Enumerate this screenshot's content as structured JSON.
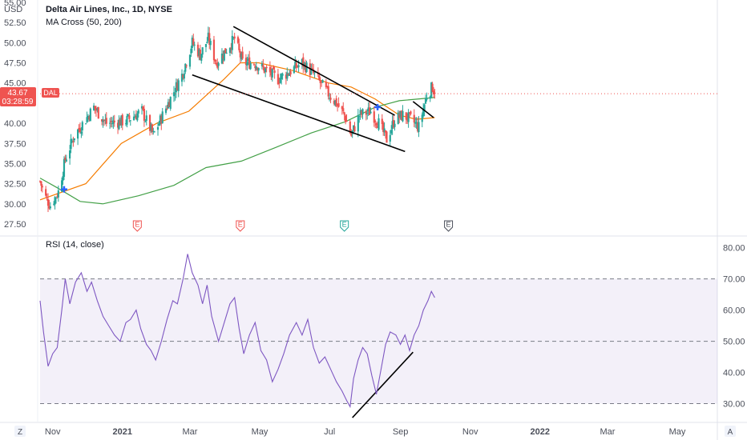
{
  "header": {
    "symbol_title": "Delta Air Lines, Inc., 1D, NYSE",
    "indicator": "MA Cross (50, 200)",
    "currency": "USD"
  },
  "rsi_header": {
    "label": "RSI (14, close)"
  },
  "price_tag": {
    "ticker": "DAL",
    "price": "43.67",
    "countdown": "03:28:59"
  },
  "bottom_left_icon": "Z",
  "bottom_right_icon": "A",
  "colors": {
    "up": "#26a69a",
    "down": "#ef5350",
    "ma50": "#f57c00",
    "ma200": "#43a047",
    "rsi_line": "#7e57c2",
    "rsi_band": "#7e57c2",
    "price_tag": "#ef5350",
    "cross_marker": "#2962ff",
    "trendline": "#000000"
  },
  "chart_data": [
    {
      "type": "candlestick",
      "title": "Delta Air Lines, Inc., 1D, NYSE",
      "ylabel": "USD",
      "y_ticks": [
        "55.00",
        "52.50",
        "50.00",
        "47.50",
        "45.00",
        "42.50",
        "40.00",
        "37.50",
        "35.00",
        "32.50",
        "30.00",
        "27.50"
      ],
      "ylim": [
        27.5,
        55.0
      ],
      "x_ticks": [
        "Nov",
        "2021",
        "Mar",
        "May",
        "Jul",
        "Sep",
        "Nov",
        "2022",
        "Mar",
        "May"
      ],
      "x_tick_dates": [
        "2020-11-01",
        "2021-01-01",
        "2021-03-01",
        "2021-05-01",
        "2021-07-01",
        "2021-09-01",
        "2021-11-01",
        "2022-01-01",
        "2022-03-01",
        "2022-05-01"
      ],
      "xlim": [
        "2020-10-21",
        "2022-06-05"
      ],
      "last_price": 43.67,
      "price_anchors": [
        {
          "date": "2020-10-21",
          "value": 32.8
        },
        {
          "date": "2020-10-25",
          "value": 31.0
        },
        {
          "date": "2020-10-30",
          "value": 29.8
        },
        {
          "date": "2020-11-06",
          "value": 31.5
        },
        {
          "date": "2020-11-12",
          "value": 35.5
        },
        {
          "date": "2020-11-20",
          "value": 38.5
        },
        {
          "date": "2020-11-30",
          "value": 40.5
        },
        {
          "date": "2020-12-07",
          "value": 42.0
        },
        {
          "date": "2020-12-18",
          "value": 40.0
        },
        {
          "date": "2021-01-04",
          "value": 40.3
        },
        {
          "date": "2021-01-18",
          "value": 41.5
        },
        {
          "date": "2021-01-28",
          "value": 38.5
        },
        {
          "date": "2021-02-10",
          "value": 42.5
        },
        {
          "date": "2021-02-22",
          "value": 46.0
        },
        {
          "date": "2021-03-03",
          "value": 50.0
        },
        {
          "date": "2021-03-10",
          "value": 48.5
        },
        {
          "date": "2021-03-17",
          "value": 50.5
        },
        {
          "date": "2021-03-24",
          "value": 47.5
        },
        {
          "date": "2021-04-01",
          "value": 49.0
        },
        {
          "date": "2021-04-09",
          "value": 50.5
        },
        {
          "date": "2021-04-16",
          "value": 47.5
        },
        {
          "date": "2021-04-26",
          "value": 47.5
        },
        {
          "date": "2021-05-07",
          "value": 46.5
        },
        {
          "date": "2021-05-17",
          "value": 45.5
        },
        {
          "date": "2021-05-28",
          "value": 46.5
        },
        {
          "date": "2021-06-07",
          "value": 47.5
        },
        {
          "date": "2021-06-18",
          "value": 46.0
        },
        {
          "date": "2021-06-28",
          "value": 44.0
        },
        {
          "date": "2021-07-07",
          "value": 42.5
        },
        {
          "date": "2021-07-14",
          "value": 41.0
        },
        {
          "date": "2021-07-20",
          "value": 38.5
        },
        {
          "date": "2021-07-27",
          "value": 41.0
        },
        {
          "date": "2021-08-06",
          "value": 41.5
        },
        {
          "date": "2021-08-13",
          "value": 40.0
        },
        {
          "date": "2021-08-20",
          "value": 38.0
        },
        {
          "date": "2021-08-27",
          "value": 40.5
        },
        {
          "date": "2021-09-03",
          "value": 41.0
        },
        {
          "date": "2021-09-10",
          "value": 40.5
        },
        {
          "date": "2021-09-17",
          "value": 39.5
        },
        {
          "date": "2021-09-24",
          "value": 43.5
        },
        {
          "date": "2021-09-29",
          "value": 44.5
        },
        {
          "date": "2021-10-01",
          "value": 43.67
        }
      ],
      "series": [
        {
          "name": "MA 50",
          "color": "#f57c00",
          "points": [
            [
              "2020-10-21",
              30.5
            ],
            [
              "2020-11-30",
              32.5
            ],
            [
              "2020-12-31",
              37.5
            ],
            [
              "2021-01-31",
              40.0
            ],
            [
              "2021-02-28",
              41.5
            ],
            [
              "2021-03-31",
              45.5
            ],
            [
              "2021-04-14",
              47.5
            ],
            [
              "2021-04-30",
              47.5
            ],
            [
              "2021-05-31",
              46.5
            ],
            [
              "2021-06-30",
              45.0
            ],
            [
              "2021-07-20",
              44.5
            ],
            [
              "2021-08-10",
              43.0
            ],
            [
              "2021-08-31",
              41.0
            ],
            [
              "2021-09-15",
              40.5
            ],
            [
              "2021-10-01",
              40.7
            ]
          ]
        },
        {
          "name": "MA 200",
          "color": "#43a047",
          "points": [
            [
              "2020-10-21",
              33.2
            ],
            [
              "2020-11-05",
              32.0
            ],
            [
              "2020-11-25",
              30.3
            ],
            [
              "2020-12-15",
              30.0
            ],
            [
              "2021-01-15",
              31.0
            ],
            [
              "2021-02-15",
              32.3
            ],
            [
              "2021-03-15",
              34.5
            ],
            [
              "2021-04-15",
              35.3
            ],
            [
              "2021-05-15",
              37.0
            ],
            [
              "2021-06-15",
              38.8
            ],
            [
              "2021-07-15",
              40.2
            ],
            [
              "2021-08-10",
              42.0
            ],
            [
              "2021-08-31",
              42.8
            ],
            [
              "2021-10-01",
              43.2
            ]
          ]
        }
      ],
      "cross_markers": [
        [
          "2020-11-11",
          31.8
        ],
        [
          "2021-08-12",
          42.0
        ]
      ],
      "trendlines": [
        [
          [
            "2021-04-08",
            52.0
          ],
          [
            "2021-08-27",
            41.0
          ]
        ],
        [
          [
            "2021-03-03",
            46.0
          ],
          [
            "2021-09-05",
            36.5
          ]
        ],
        [
          [
            "2021-09-12",
            42.7
          ],
          [
            "2021-09-30",
            40.7
          ]
        ]
      ],
      "earnings": [
        {
          "date": "2021-01-14",
          "label": "E",
          "color": "#ef5350"
        },
        {
          "date": "2021-04-14",
          "label": "E",
          "color": "#ef5350"
        },
        {
          "date": "2021-07-14",
          "label": "E",
          "color": "#26a69a"
        },
        {
          "date": "2021-10-13",
          "label": "E",
          "color": "#4a4e59"
        }
      ]
    },
    {
      "type": "line",
      "title": "RSI (14, close)",
      "y_ticks": [
        "80.00",
        "70.00",
        "60.00",
        "50.00",
        "40.00",
        "30.00"
      ],
      "ylim": [
        25,
        83
      ],
      "bands": [
        30,
        50,
        70
      ],
      "series": [
        {
          "name": "RSI",
          "color": "#7e57c2",
          "points": [
            [
              "2020-10-21",
              63
            ],
            [
              "2020-10-24",
              53
            ],
            [
              "2020-10-28",
              42
            ],
            [
              "2020-11-01",
              46
            ],
            [
              "2020-11-05",
              48
            ],
            [
              "2020-11-09",
              60
            ],
            [
              "2020-11-12",
              70
            ],
            [
              "2020-11-16",
              62
            ],
            [
              "2020-11-21",
              69
            ],
            [
              "2020-11-26",
              72
            ],
            [
              "2020-12-01",
              66
            ],
            [
              "2020-12-05",
              69
            ],
            [
              "2020-12-10",
              63
            ],
            [
              "2020-12-15",
              58
            ],
            [
              "2020-12-20",
              55
            ],
            [
              "2020-12-25",
              52
            ],
            [
              "2020-12-30",
              50
            ],
            [
              "2021-01-04",
              56
            ],
            [
              "2021-01-08",
              57
            ],
            [
              "2021-01-13",
              60
            ],
            [
              "2021-01-17",
              54
            ],
            [
              "2021-01-22",
              49
            ],
            [
              "2021-01-26",
              47
            ],
            [
              "2021-01-30",
              44
            ],
            [
              "2021-02-04",
              50
            ],
            [
              "2021-02-09",
              57
            ],
            [
              "2021-02-14",
              63
            ],
            [
              "2021-02-18",
              62
            ],
            [
              "2021-02-23",
              70
            ],
            [
              "2021-02-27",
              78
            ],
            [
              "2021-03-03",
              72
            ],
            [
              "2021-03-08",
              68
            ],
            [
              "2021-03-12",
              62
            ],
            [
              "2021-03-16",
              68
            ],
            [
              "2021-03-20",
              58
            ],
            [
              "2021-03-26",
              50
            ],
            [
              "2021-03-31",
              56
            ],
            [
              "2021-04-05",
              62
            ],
            [
              "2021-04-09",
              64
            ],
            [
              "2021-04-13",
              54
            ],
            [
              "2021-04-17",
              46
            ],
            [
              "2021-04-22",
              52
            ],
            [
              "2021-04-27",
              56
            ],
            [
              "2021-05-02",
              47
            ],
            [
              "2021-05-07",
              44
            ],
            [
              "2021-05-12",
              37
            ],
            [
              "2021-05-17",
              41
            ],
            [
              "2021-05-22",
              46
            ],
            [
              "2021-05-27",
              52
            ],
            [
              "2021-06-02",
              56
            ],
            [
              "2021-06-07",
              52
            ],
            [
              "2021-06-12",
              57
            ],
            [
              "2021-06-17",
              48
            ],
            [
              "2021-06-22",
              43
            ],
            [
              "2021-06-27",
              45
            ],
            [
              "2021-07-02",
              41
            ],
            [
              "2021-07-07",
              37
            ],
            [
              "2021-07-12",
              34
            ],
            [
              "2021-07-16",
              31
            ],
            [
              "2021-07-19",
              29
            ],
            [
              "2021-07-22",
              38
            ],
            [
              "2021-07-26",
              44
            ],
            [
              "2021-07-30",
              48
            ],
            [
              "2021-08-03",
              46
            ],
            [
              "2021-08-07",
              39
            ],
            [
              "2021-08-11",
              33
            ],
            [
              "2021-08-15",
              41
            ],
            [
              "2021-08-19",
              49
            ],
            [
              "2021-08-23",
              53
            ],
            [
              "2021-08-28",
              52
            ],
            [
              "2021-09-01",
              49
            ],
            [
              "2021-09-05",
              52
            ],
            [
              "2021-09-09",
              47
            ],
            [
              "2021-09-13",
              52
            ],
            [
              "2021-09-17",
              55
            ],
            [
              "2021-09-21",
              60
            ],
            [
              "2021-09-25",
              63
            ],
            [
              "2021-09-28",
              66
            ],
            [
              "2021-10-01",
              64
            ]
          ]
        }
      ],
      "trendlines": [
        [
          [
            "2021-07-21",
            25.5
          ],
          [
            "2021-09-12",
            46.5
          ]
        ]
      ]
    }
  ]
}
